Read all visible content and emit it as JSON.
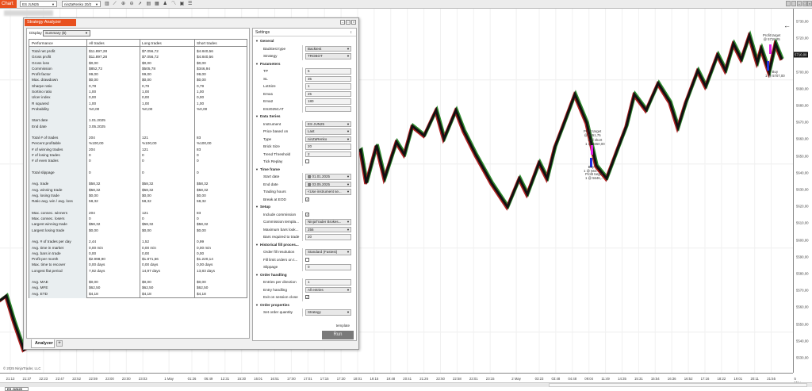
{
  "topbar": {
    "chart_tab": "Chart",
    "instrument": "ES JUN25",
    "bar_type": "ninZaRenko 20/2",
    "icons": [
      "bar-chart-icon",
      "draw-line-icon",
      "zoom-in-icon",
      "zoom-out-icon",
      "pointer-icon",
      "properties-icon",
      "templates-icon",
      "strategies-icon",
      "indicators-icon",
      "data-box-icon",
      "list-icon"
    ]
  },
  "chart": {
    "price_labels": [
      "5730,00",
      "5720,00",
      "5710,00",
      "5700,00",
      "5690,00",
      "5680,00",
      "5670,00",
      "5660,00",
      "5650,00",
      "5640,00",
      "5630,00",
      "5620,00",
      "5610,00",
      "5600,00",
      "5590,00",
      "5580,00",
      "5570,00",
      "5560,00",
      "5550,00",
      "5540,00",
      "5530,00"
    ],
    "current_price": "5710,00",
    "time_labels": [
      "21:13",
      "21:37",
      "22:23",
      "22:47",
      "22:52",
      "22:59",
      "23:00",
      "23:00",
      "23:03",
      "1 May",
      "01:26",
      "06:49",
      "12:31",
      "15:30",
      "16:01",
      "16:51",
      "17:00",
      "17:01",
      "17:15",
      "17:30",
      "18:01",
      "19:15",
      "19:48",
      "20:41",
      "21:26",
      "22:50",
      "22:58",
      "23:01",
      "23:15",
      "2 May",
      "03:23",
      "03:48",
      "04:48",
      "09:04",
      "11:49",
      "14:35",
      "15:31",
      "15:54",
      "16:36",
      "16:52",
      "17:16",
      "18:22",
      "19:01",
      "20:11",
      "21:55",
      "5 May"
    ],
    "copyright": "© 2025 NinjaTrader, LLC",
    "bottom_tab": "ES JUN25",
    "annotations": {
      "pt1": "Profit target",
      "pt1_price": "@ 5718,25",
      "buy1": "Buy",
      "buy1_price": "1 @ 5707,00",
      "pt2": "Profit target",
      "pt2_price": "@ 5651,75",
      "sell2": "Sell short",
      "sell2_price": "1 @ 5650,00",
      "buy2": "Buy",
      "buy2_price": "1 @ 564..",
      "pt3": "Profit target",
      "pt3_price": "1 @ 5646,.."
    },
    "colors": {
      "line": "#111111",
      "up": "#2e8b2e",
      "down": "#b22222",
      "current": "#111111"
    }
  },
  "dialog": {
    "title": "Strategy Analyzer",
    "display_label": "Display",
    "display_value": "Summary ($)",
    "tabs": {
      "analyzer": "Analyzer",
      "add": "+"
    },
    "performance": {
      "headers": [
        "Performance",
        "All trades",
        "Long trades",
        "Short trades"
      ],
      "rows": [
        [
          "Total net profit",
          "$11.897,28",
          "$7.056,72",
          "$4.840,56"
        ],
        [
          "Gross profit",
          "$11.897,28",
          "$7.056,72",
          "$4.840,56"
        ],
        [
          "Gross loss",
          "$0,00",
          "$0,00",
          "$0,00"
        ],
        [
          "Commission",
          "$852,72",
          "$505,78",
          "$346,94"
        ],
        [
          "Profit factor",
          "99,00",
          "99,00",
          "99,00"
        ],
        [
          "Max. drawdown",
          "$0,00",
          "$0,00",
          "$0,00"
        ],
        [
          "Sharpe ratio",
          "0,78",
          "0,79",
          "0,79"
        ],
        [
          "Sortino ratio",
          "1,00",
          "1,00",
          "1,00"
        ],
        [
          "Ulcer index",
          "0,00",
          "0,00",
          "0,00"
        ],
        [
          "R squared",
          "1,00",
          "1,00",
          "1,00"
        ],
        [
          "Probability",
          "%0,00",
          "%0,00",
          "%0,00"
        ],
        [
          "",
          "",
          "",
          ""
        ],
        [
          "Start date",
          "1.01.2025",
          "",
          ""
        ],
        [
          "End date",
          "3.05.2025",
          "",
          ""
        ],
        [
          "",
          "",
          "",
          ""
        ],
        [
          "Total # of trades",
          "204",
          "121",
          "83"
        ],
        [
          "Percent profitable",
          "%100,00",
          "%100,00",
          "%100,00"
        ],
        [
          "# of winning trades",
          "204",
          "121",
          "83"
        ],
        [
          "# of losing trades",
          "0",
          "0",
          "0"
        ],
        [
          "# of even trades",
          "0",
          "0",
          "0"
        ],
        [
          "",
          "",
          "",
          ""
        ],
        [
          "Total slippage",
          "0",
          "0",
          "0"
        ],
        [
          "",
          "",
          "",
          ""
        ],
        [
          "Avg. trade",
          "$58,32",
          "$58,32",
          "$58,32"
        ],
        [
          "Avg. winning trade",
          "$58,32",
          "$58,32",
          "$58,32"
        ],
        [
          "Avg. losing trade",
          "$0,00",
          "$0,00",
          "$0,00"
        ],
        [
          "Ratio avg. win / avg. loss",
          "58,32",
          "58,32",
          "58,32"
        ],
        [
          "",
          "",
          "",
          ""
        ],
        [
          "Max. consec. winners",
          "204",
          "121",
          "83"
        ],
        [
          "Max. consec. losers",
          "0",
          "0",
          "0"
        ],
        [
          "Largest winning trade",
          "$58,32",
          "$58,32",
          "$58,32"
        ],
        [
          "Largest losing trade",
          "$0,00",
          "$0,00",
          "$0,00"
        ],
        [
          "",
          "",
          "",
          ""
        ],
        [
          "Avg. # of trades per day",
          "2,44",
          "1,52",
          "0,99"
        ],
        [
          "Avg. time in market",
          "0,00 min",
          "0,00 min",
          "0,00 min"
        ],
        [
          "Avg. bars in trade",
          "0,00",
          "0,00",
          "0,00"
        ],
        [
          "Profit per month",
          "$2.998,90",
          "$1.871,56",
          "$1.220,14"
        ],
        [
          "Max. time to recover",
          "0,00 days",
          "0,00 days",
          "0,00 days"
        ],
        [
          "Longest flat period",
          "7,92 days",
          "14,97 days",
          "13,83 days"
        ],
        [
          "",
          "",
          "",
          ""
        ],
        [
          "Avg. MAE",
          "$0,00",
          "$0,00",
          "$0,00"
        ],
        [
          "Avg. MFE",
          "$62,50",
          "$62,50",
          "$62,50"
        ],
        [
          "Avg. ETD",
          "$4,18",
          "$4,18",
          "$4,18"
        ]
      ]
    },
    "settings": {
      "title": "Settings",
      "template_link": "template",
      "run_label": "Run",
      "rows": [
        {
          "section": "General"
        },
        {
          "label": "Backtest type",
          "value": "Backtest",
          "kind": "select"
        },
        {
          "label": "Strategy",
          "value": "TROBOT",
          "kind": "select"
        },
        {
          "section": "Parameters"
        },
        {
          "label": "TP",
          "value": "5",
          "kind": "text"
        },
        {
          "label": "SL",
          "value": "35",
          "kind": "text"
        },
        {
          "label": "LotSize",
          "value": "1",
          "kind": "text"
        },
        {
          "label": "Ema1",
          "value": "25",
          "kind": "text"
        },
        {
          "label": "Ema2",
          "value": "180",
          "kind": "text"
        },
        {
          "label": "ES2025CAT",
          "value": "",
          "kind": "text"
        },
        {
          "section": "Data Series"
        },
        {
          "label": "Instrument",
          "value": "ES JUN25",
          "kind": "select"
        },
        {
          "label": "Price based on",
          "value": "Last",
          "kind": "select"
        },
        {
          "label": "Type",
          "value": "ninZaRenko",
          "kind": "select"
        },
        {
          "label": "Brick Size",
          "value": "20",
          "kind": "text"
        },
        {
          "label": "Trend Threshold",
          "value": "2",
          "kind": "text"
        },
        {
          "label": "Tick Replay",
          "value": false,
          "kind": "check"
        },
        {
          "section": "Time frame"
        },
        {
          "label": "Start date",
          "value": "▦ 01.01.2025",
          "kind": "select"
        },
        {
          "label": "End date",
          "value": "▦ 03.05.2025",
          "kind": "select"
        },
        {
          "label": "Trading hours",
          "value": "<Use instrument se...",
          "kind": "select"
        },
        {
          "label": "Break at EOD",
          "value": true,
          "kind": "check"
        },
        {
          "section": "Setup"
        },
        {
          "label": "Include commission",
          "value": true,
          "kind": "check"
        },
        {
          "label": "Commission templa...",
          "value": "NinjaTrader Brokes...",
          "kind": "select"
        },
        {
          "label": "Maximum bars look...",
          "value": "256",
          "kind": "select"
        },
        {
          "label": "Bars required to trade",
          "value": "20",
          "kind": "text"
        },
        {
          "section": "Historical fill proces..."
        },
        {
          "label": "Order fill resolution",
          "value": "Standard (Fastest)",
          "kind": "select"
        },
        {
          "label": "Fill limit orders on t...",
          "value": false,
          "kind": "check"
        },
        {
          "label": "Slippage",
          "value": "0",
          "kind": "text"
        },
        {
          "section": "Order handling"
        },
        {
          "label": "Entries per direction",
          "value": "1",
          "kind": "text"
        },
        {
          "label": "Entry handling",
          "value": "All entries",
          "kind": "select"
        },
        {
          "label": "Exit on session close",
          "value": true,
          "kind": "check"
        },
        {
          "section": "Order properties"
        },
        {
          "label": "Set order quantity",
          "value": "Strategy",
          "kind": "select"
        }
      ]
    }
  }
}
